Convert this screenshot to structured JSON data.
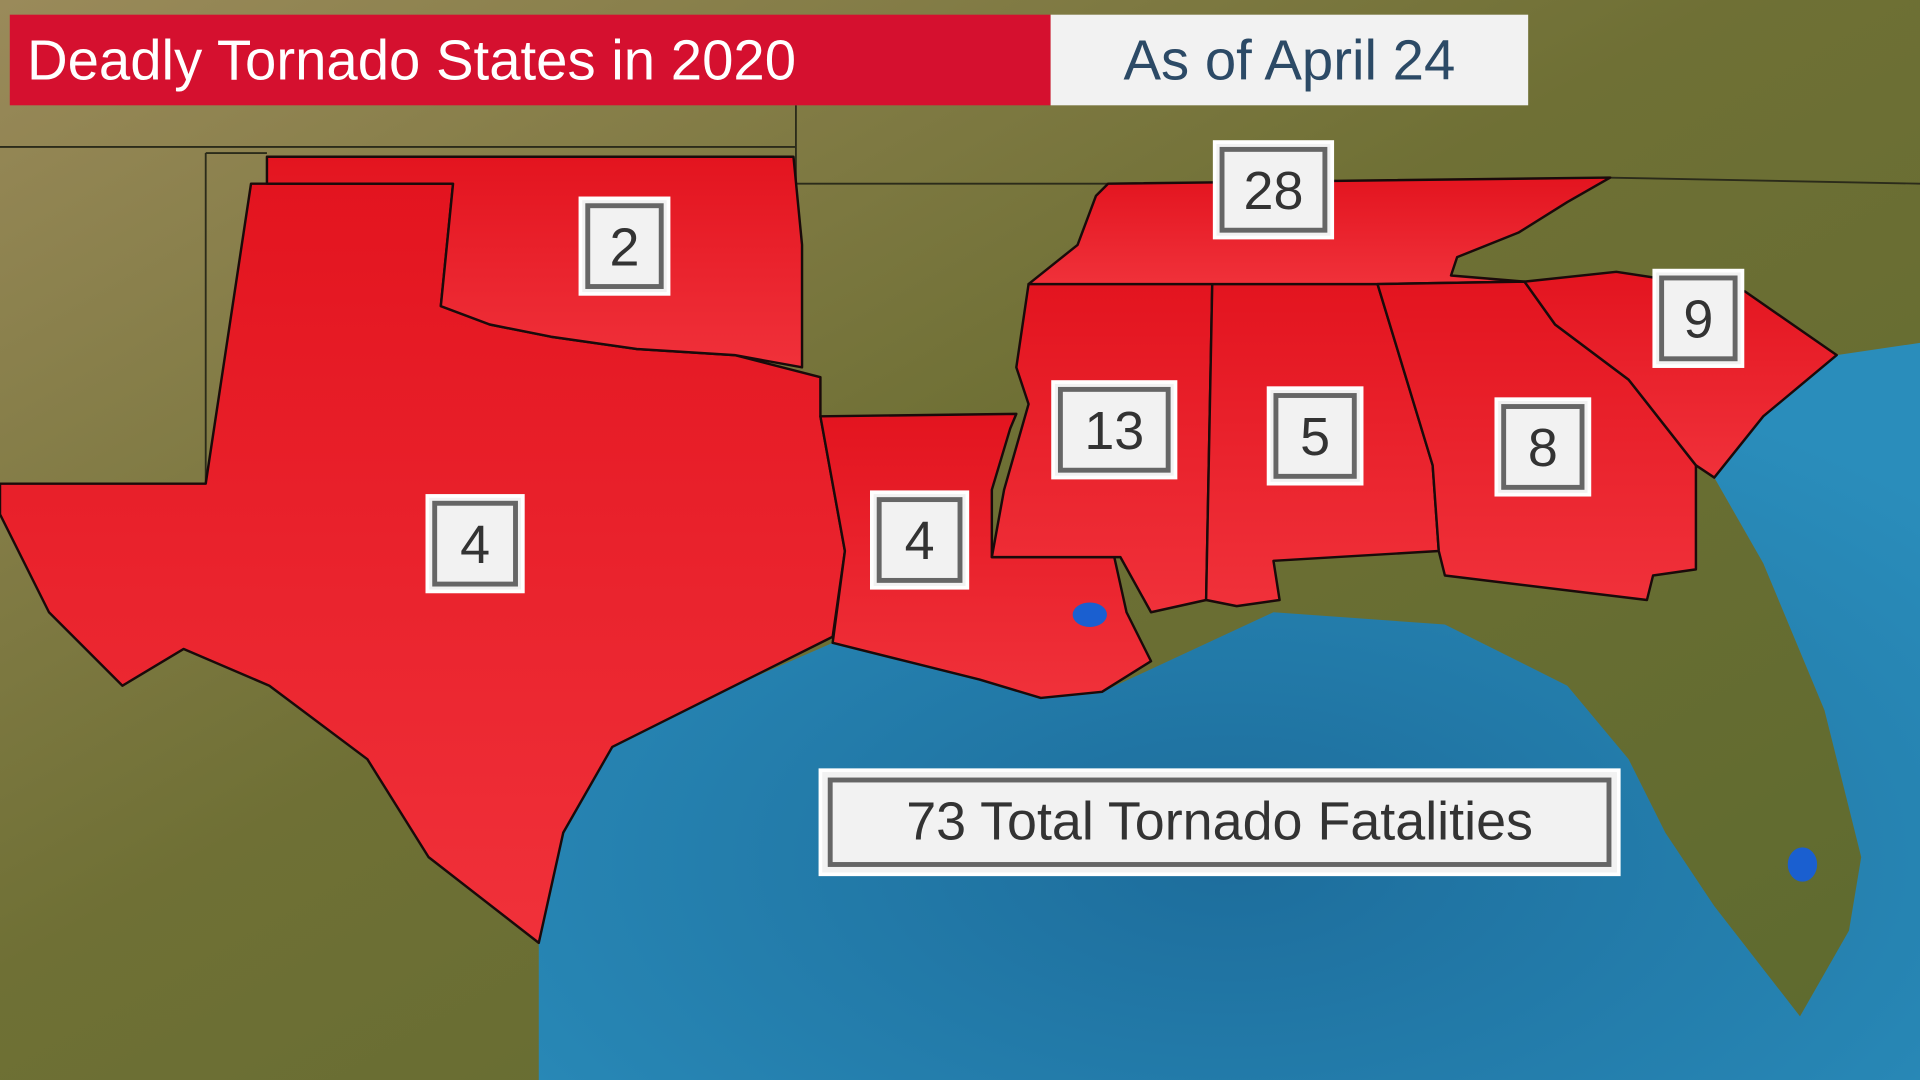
{
  "header": {
    "title": "Deadly Tornado States in 2020",
    "subtitle": "As of April 24"
  },
  "states": [
    {
      "value": 2
    },
    {
      "value": 4
    },
    {
      "value": 4
    },
    {
      "value": 13
    },
    {
      "value": 5
    },
    {
      "value": 8
    },
    {
      "value": 9
    },
    {
      "value": 28
    }
  ],
  "total_label": "73 Total Tornado Fatalities"
}
